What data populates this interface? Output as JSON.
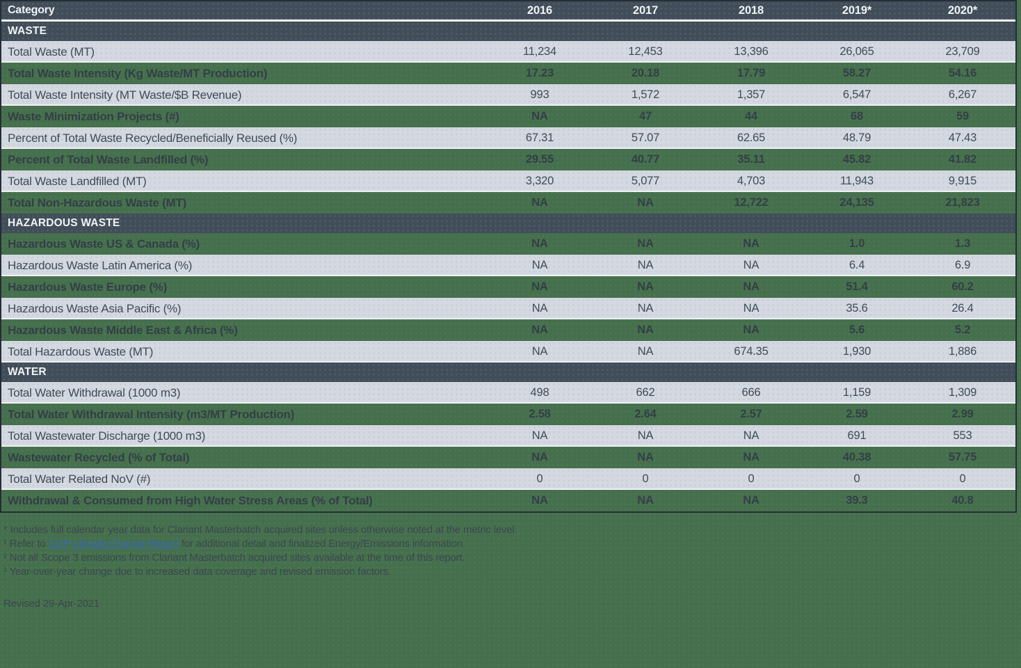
{
  "colors": {
    "page_background": "#46704d",
    "header_background": "#414e59",
    "light_row_background": "#d4d8e1",
    "table_border": "#242e35",
    "header_text": "#eef2f5",
    "light_row_text": "#3f4c58",
    "green_row_text": "#333f47",
    "footnote_text": "#3a474f",
    "link_color": "#3767b5"
  },
  "table": {
    "header": {
      "category": "Category",
      "years": [
        "2016",
        "2017",
        "2018",
        "2019*",
        "2020*"
      ]
    },
    "sections": [
      {
        "title": "WASTE",
        "rows": [
          {
            "label": "Total Waste (MT)",
            "values": [
              "11,234",
              "12,453",
              "13,396",
              "26,065",
              "23,709"
            ]
          },
          {
            "label": "Total Waste Intensity (Kg Waste/MT Production)",
            "values": [
              "17.23",
              "20.18",
              "17.79",
              "58.27",
              "54.16"
            ]
          },
          {
            "label": "Total Waste Intensity (MT Waste/$B Revenue)",
            "values": [
              "993",
              "1,572",
              "1,357",
              "6,547",
              "6,267"
            ]
          },
          {
            "label": "Waste Minimization Projects (#)",
            "values": [
              "NA",
              "47",
              "44",
              "68",
              "59"
            ]
          },
          {
            "label": "Percent of Total Waste Recycled/Beneficially Reused (%)",
            "values": [
              "67.31",
              "57.07",
              "62.65",
              "48.79",
              "47.43"
            ]
          },
          {
            "label": "Percent of Total Waste Landfilled (%)",
            "values": [
              "29.55",
              "40.77",
              "35.11",
              "45.82",
              "41.82"
            ]
          },
          {
            "label": "Total Waste Landfilled (MT)",
            "values": [
              "3,320",
              "5,077",
              "4,703",
              "11,943",
              "9,915"
            ]
          },
          {
            "label": "Total Non-Hazardous Waste (MT)",
            "values": [
              "NA",
              "NA",
              "12,722",
              "24,135",
              "21,823"
            ]
          }
        ]
      },
      {
        "title": "HAZARDOUS WASTE",
        "rows": [
          {
            "label": "Hazardous Waste US & Canada (%)",
            "values": [
              "NA",
              "NA",
              "NA",
              "1.0",
              "1.3"
            ]
          },
          {
            "label": "Hazardous Waste Latin America (%)",
            "values": [
              "NA",
              "NA",
              "NA",
              "6.4",
              "6.9"
            ]
          },
          {
            "label": "Hazardous Waste Europe (%)",
            "values": [
              "NA",
              "NA",
              "NA",
              "51.4",
              "60.2"
            ]
          },
          {
            "label": "Hazardous Waste Asia Pacific (%)",
            "values": [
              "NA",
              "NA",
              "NA",
              "35.6",
              "26.4"
            ]
          },
          {
            "label": "Hazardous Waste Middle East & Africa (%)",
            "values": [
              "NA",
              "NA",
              "NA",
              "5.6",
              "5.2"
            ]
          },
          {
            "label": "Total Hazardous Waste (MT)",
            "values": [
              "NA",
              "NA",
              "674.35",
              "1,930",
              "1,886"
            ]
          }
        ]
      },
      {
        "title": "WATER",
        "rows": [
          {
            "label": "Total Water Withdrawal (1000 m3)",
            "values": [
              "498",
              "662",
              "666",
              "1,159",
              "1,309"
            ]
          },
          {
            "label": "Total Water Withdrawal Intensity (m3/MT Production)",
            "values": [
              "2.58",
              "2.64",
              "2.57",
              "2.59",
              "2.99"
            ]
          },
          {
            "label": "Total Wastewater Discharge (1000 m3)",
            "values": [
              "NA",
              "NA",
              "NA",
              "691",
              "553"
            ]
          },
          {
            "label": "Wastewater Recycled (% of Total)",
            "values": [
              "NA",
              "NA",
              "NA",
              "40.38",
              "57.75"
            ]
          },
          {
            "label": "Total Water Related NoV (#)",
            "values": [
              "0",
              "0",
              "0",
              "0",
              "0"
            ]
          },
          {
            "label": "Withdrawal & Consumed from High Water Stress Areas (% of Total)",
            "values": [
              "NA",
              "NA",
              "NA",
              "39.3",
              "40.8"
            ]
          }
        ]
      }
    ]
  },
  "footnotes": {
    "note_asterisk": "* Includes full calendar year data for Clariant Masterbatch acquired sites unless otherwise noted at the metric level.",
    "note1_prefix": "¹ Refer to ",
    "note1_link": "CDP Climate Change Report",
    "note1_suffix": " for additional detail and finalized Energy/Emissions information.",
    "note2": "² Not all Scope 3 emissions from Clariant Masterbatch acquired sites available at the time of this report.",
    "note3": "³ Year-over-year change due to increased data coverage and revised emission factors.",
    "revised": "Revised 29-Apr-2021"
  }
}
